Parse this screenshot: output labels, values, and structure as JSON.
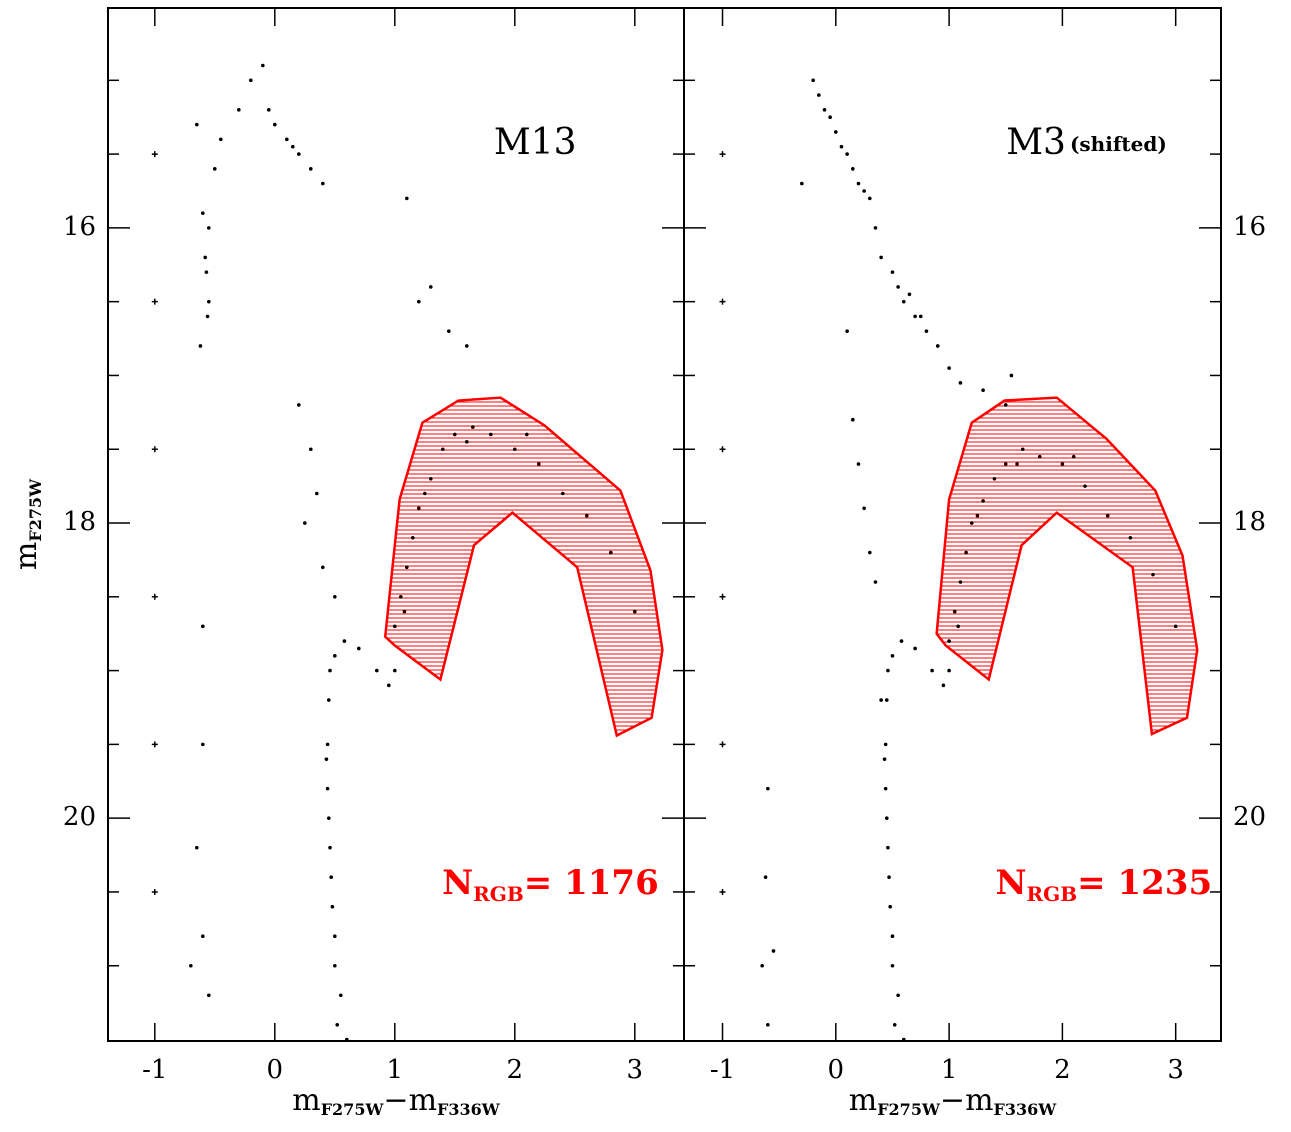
{
  "chart_data": [
    {
      "type": "scatter",
      "title": "M13",
      "xlabel": {
        "m1": "m",
        "s1": "F275W",
        "op": "−",
        "m2": "m",
        "s2": "F336W"
      },
      "ylabel": {
        "main": "m",
        "sub": "F275W"
      },
      "yaxis_side": "left",
      "xlim": [
        -1.39,
        3.41
      ],
      "ylim": [
        21.51,
        14.51
      ],
      "xticks": [
        -1,
        0,
        1,
        2,
        3
      ],
      "yticks": [
        16,
        18,
        20
      ],
      "yminorticks": [
        15,
        15.5,
        16.5,
        17,
        17.5,
        18.5,
        19,
        19.5,
        20.5,
        21
      ],
      "error_points": {
        "x": [
          -1,
          -1,
          -1,
          -1,
          -1,
          -1
        ],
        "values": [
          15.5,
          16.5,
          17.5,
          18.5,
          19.5,
          20.5
        ]
      },
      "series": [
        {
          "color": "#000000",
          "x": [
            -0.55,
            -0.57,
            -0.56,
            -0.6,
            -0.58,
            -0.55,
            -0.5,
            -0.45,
            -0.3,
            -0.2,
            -0.1,
            0,
            0.1,
            0.2,
            0.3,
            0.4,
            -0.05,
            0.15,
            -0.65,
            -0.62,
            1.1,
            1.3,
            1.45,
            1.6,
            1.2,
            0.2,
            0.3,
            0.35,
            0.25,
            0.4,
            0.5,
            -0.6,
            -0.6,
            -0.65,
            -0.6,
            -0.55,
            -0.7,
            0.52,
            0.5,
            0.48,
            0.46,
            0.44,
            0.44,
            0.45,
            0.5,
            0.58,
            0.7,
            0.85,
            0.95,
            1.0,
            0.55,
            0.5,
            0.47,
            0.45,
            0.43,
            0.46,
            0.6,
            1.0,
            1.05,
            1.1,
            1.15,
            1.2,
            1.3,
            1.4,
            1.5,
            1.65,
            1.8,
            2.0,
            2.2,
            2.4,
            2.6,
            2.8,
            3.0,
            1.08,
            1.25,
            1.6,
            2.1
          ],
          "values": [
            16.0,
            16.3,
            16.6,
            15.9,
            16.2,
            16.5,
            15.6,
            15.4,
            15.2,
            15.0,
            14.9,
            15.3,
            15.4,
            15.5,
            15.6,
            15.7,
            15.2,
            15.45,
            15.3,
            16.8,
            15.8,
            16.4,
            16.7,
            16.8,
            16.5,
            17.2,
            17.5,
            17.8,
            18.0,
            18.3,
            18.5,
            18.7,
            19.5,
            20.2,
            20.8,
            21.2,
            21.0,
            21.4,
            21.0,
            20.6,
            20.2,
            19.8,
            19.5,
            19.2,
            18.9,
            18.8,
            18.85,
            19.0,
            19.1,
            19.0,
            21.2,
            20.8,
            20.4,
            20.0,
            19.6,
            19.0,
            21.5,
            18.7,
            18.5,
            18.3,
            18.1,
            17.9,
            17.7,
            17.5,
            17.4,
            17.35,
            17.4,
            17.5,
            17.6,
            17.8,
            17.95,
            18.2,
            18.6,
            18.6,
            17.8,
            17.45,
            17.4
          ]
        }
      ],
      "region": {
        "color": "#ff0000",
        "x": [
          0.92,
          1.04,
          1.23,
          1.53,
          1.88,
          2.25,
          2.88,
          3.13,
          3.23,
          3.14,
          2.85,
          2.52,
          1.98,
          1.66,
          1.38,
          1.0
        ],
        "values": [
          18.77,
          17.84,
          17.32,
          17.17,
          17.15,
          17.34,
          17.78,
          18.32,
          18.86,
          19.32,
          19.44,
          18.3,
          17.93,
          18.15,
          19.06,
          18.83
        ]
      },
      "annotation": {
        "main": "N",
        "sub": "RGB",
        "text": "= 1176"
      }
    },
    {
      "type": "scatter",
      "title": "M3",
      "subtitle": "(shifted)",
      "xlabel": {
        "m1": "m",
        "s1": "F275W",
        "op": "−",
        "m2": "m",
        "s2": "F336W"
      },
      "yaxis_side": "right",
      "xlim": [
        -1.34,
        3.4
      ],
      "ylim": [
        21.51,
        14.51
      ],
      "xticks": [
        -1,
        0,
        1,
        2,
        3
      ],
      "yticks": [
        16,
        18,
        20
      ],
      "yminorticks": [
        15,
        15.5,
        16.5,
        17,
        17.5,
        18.5,
        19,
        19.5,
        20.5,
        21
      ],
      "error_points": {
        "x": [
          -1,
          -1,
          -1,
          -1,
          -1,
          -1
        ],
        "values": [
          15.5,
          16.5,
          17.5,
          18.5,
          19.5,
          20.5
        ]
      },
      "series": [
        {
          "color": "#000000",
          "x": [
            -0.2,
            -0.15,
            -0.1,
            -0.05,
            0,
            0.05,
            0.1,
            0.15,
            0.2,
            0.25,
            0.3,
            0.35,
            0.4,
            0.5,
            0.6,
            0.7,
            0.8,
            0.9,
            1.0,
            1.1,
            1.3,
            1.5,
            0.55,
            0.65,
            0.75,
            1.55,
            -0.3,
            0.1,
            0.15,
            0.2,
            0.25,
            0.3,
            0.35,
            0.4,
            -0.6,
            -0.62,
            -0.65,
            -0.6,
            -0.55,
            0.52,
            0.5,
            0.48,
            0.46,
            0.44,
            0.44,
            0.45,
            0.5,
            0.58,
            0.7,
            0.85,
            0.95,
            1.0,
            0.55,
            0.5,
            0.47,
            0.45,
            0.43,
            0.46,
            0.6,
            1.0,
            1.05,
            1.1,
            1.15,
            1.2,
            1.3,
            1.4,
            1.5,
            1.65,
            1.8,
            2.0,
            2.2,
            2.4,
            2.6,
            2.8,
            3.0,
            1.08,
            1.25,
            1.6,
            2.1
          ],
          "values": [
            15.0,
            15.1,
            15.2,
            15.25,
            15.35,
            15.45,
            15.5,
            15.6,
            15.7,
            15.75,
            15.8,
            16.0,
            16.2,
            16.3,
            16.5,
            16.6,
            16.7,
            16.8,
            16.95,
            17.05,
            17.1,
            17.2,
            16.4,
            16.45,
            16.6,
            17.0,
            15.7,
            16.7,
            17.3,
            17.6,
            17.9,
            18.2,
            18.4,
            19.2,
            19.8,
            20.4,
            21.0,
            21.4,
            20.9,
            21.4,
            21.0,
            20.6,
            20.2,
            19.8,
            19.5,
            19.2,
            18.9,
            18.8,
            18.85,
            19.0,
            19.1,
            19.0,
            21.2,
            20.8,
            20.4,
            20.0,
            19.6,
            19.0,
            21.5,
            18.8,
            18.6,
            18.4,
            18.2,
            18.0,
            17.85,
            17.7,
            17.6,
            17.5,
            17.55,
            17.6,
            17.75,
            17.95,
            18.1,
            18.35,
            18.7,
            18.7,
            17.95,
            17.6,
            17.55
          ]
        }
      ],
      "region": {
        "color": "#ff0000",
        "x": [
          0.89,
          1.0,
          1.2,
          1.49,
          1.95,
          2.39,
          2.82,
          3.06,
          3.19,
          3.1,
          2.79,
          2.62,
          1.95,
          1.64,
          1.35,
          0.97
        ],
        "values": [
          18.75,
          17.84,
          17.32,
          17.17,
          17.15,
          17.43,
          17.78,
          18.22,
          18.86,
          19.32,
          19.43,
          18.3,
          17.93,
          18.15,
          19.06,
          18.83
        ]
      },
      "annotation": {
        "main": "N",
        "sub": "RGB",
        "text": "= 1235"
      }
    }
  ]
}
